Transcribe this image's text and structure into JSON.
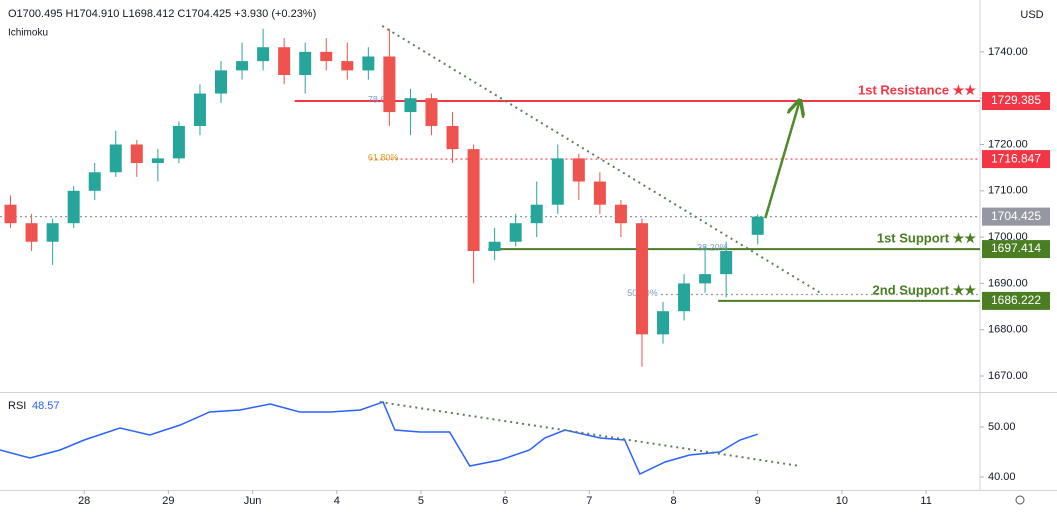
{
  "chart_data": [
    {
      "type": "candlestick",
      "header": "O1700.495 H1704.910 L1698.412 C1704.425 +3.930 (+0.23%)",
      "indicator": "Ichimoku",
      "currency": "USD",
      "x": [
        0.125,
        0.375,
        0.625,
        0.875,
        1.125,
        1.375,
        1.625,
        1.875,
        2.125,
        2.375,
        2.625,
        2.875,
        3.125,
        3.375,
        3.625,
        3.875,
        4.125,
        4.375,
        4.625,
        4.875,
        5.125,
        5.375,
        5.625,
        5.875,
        6.125,
        6.375,
        6.625,
        6.875,
        7.125,
        7.375,
        7.625,
        7.875,
        8.125,
        8.375,
        8.625,
        9.0
      ],
      "open": [
        1707,
        1703,
        1699,
        1703,
        1710,
        1714,
        1720,
        1716,
        1717,
        1724,
        1731,
        1736,
        1738,
        1741,
        1735,
        1740,
        1738,
        1736,
        1739,
        1727,
        1730,
        1724,
        1719,
        1697,
        1699,
        1703,
        1707,
        1717,
        1712,
        1707,
        1703,
        1679,
        1684,
        1690,
        1692,
        1700.495
      ],
      "high": [
        1709,
        1705,
        1704,
        1711,
        1716,
        1723,
        1721,
        1719,
        1725,
        1733,
        1738,
        1742,
        1745,
        1743,
        1742,
        1743,
        1742,
        1741,
        1745,
        1732,
        1731,
        1727,
        1720,
        1702,
        1705,
        1712,
        1720,
        1718,
        1714,
        1708,
        1704,
        1686,
        1692,
        1698,
        1699,
        1704.91
      ],
      "low": [
        1702,
        1697,
        1694,
        1702,
        1708,
        1713,
        1713,
        1712,
        1716,
        1722,
        1729,
        1734,
        1736,
        1733,
        1731,
        1736,
        1734,
        1734,
        1724,
        1722,
        1722,
        1716,
        1690,
        1695,
        1698,
        1700,
        1705,
        1708,
        1705,
        1700,
        1672,
        1677,
        1682,
        1688,
        1687,
        1698.412
      ],
      "close": [
        1703,
        1699,
        1703,
        1710,
        1714,
        1720,
        1716,
        1717,
        1724,
        1731,
        1736,
        1738,
        1741,
        1735,
        1740,
        1738,
        1736,
        1739,
        1727,
        1730,
        1724,
        1719,
        1697,
        1699,
        1703,
        1707,
        1717,
        1712,
        1707,
        1703,
        1679,
        1684,
        1690,
        1692,
        1697,
        1704.425
      ],
      "up_color": "#26a69a",
      "down_color": "#ef5350",
      "xlim": [
        0,
        11.64
      ],
      "xticks": [
        {
          "value": 1,
          "label": "28"
        },
        {
          "value": 2,
          "label": "29"
        },
        {
          "value": 3,
          "label": "Jun"
        },
        4,
        5,
        6,
        7,
        {
          "value": 8,
          "label": "8"
        },
        {
          "value": 9,
          "label": "9"
        },
        {
          "value": 10,
          "label": "10"
        },
        {
          "value": 11,
          "label": "11"
        }
      ],
      "ylim": [
        1666.55,
        1751.2
      ],
      "yticks": [
        {
          "value": 1670,
          "label": "1670.00"
        },
        {
          "value": 1680,
          "label": "1680.00"
        },
        {
          "value": 1690,
          "label": "1690.00"
        },
        {
          "value": 1700,
          "label": "1700.00"
        },
        {
          "value": 1710,
          "label": "1710.00"
        },
        {
          "value": 1720,
          "label": "1720.00"
        },
        {
          "value": 1730,
          "label": "1730.00"
        },
        {
          "value": 1740,
          "label": "1740.00"
        }
      ],
      "levels": [
        {
          "value": 1729.385,
          "color": "#f23645",
          "dashed": false,
          "from": 3.5,
          "axis_label": true
        },
        {
          "value": 1716.847,
          "color": "#f23645",
          "dashed": true,
          "from": 4.4,
          "axis_label": true
        },
        {
          "value": 1704.425,
          "color": "#9598a1",
          "dashed": true,
          "from": 0,
          "axis_label": true
        },
        {
          "value": 1697.414,
          "color": "#4b7d22",
          "dashed": false,
          "from": 5.8,
          "axis_label": true
        },
        {
          "value": 1686.222,
          "color": "#4b7d22",
          "dashed": false,
          "from": 8.53,
          "axis_label": true
        },
        {
          "value": 1687.6,
          "color": "#9598a1",
          "dashed": true,
          "from": 7.85,
          "axis_label": false
        }
      ],
      "fib_labels": [
        {
          "label": "78.6%",
          "value": 1729.385,
          "at": 4.37,
          "color": "#7b9cc9"
        },
        {
          "label": "61.80%",
          "value": 1716.847,
          "at": 4.37,
          "color": "#d4a017"
        },
        {
          "label": "38.20%",
          "value": 1697.414,
          "at": 8.28,
          "color": "#7b9cc9"
        },
        {
          "label": "50.00%",
          "value": 1687.6,
          "at": 7.45,
          "color": "#7b9cc9"
        }
      ],
      "annotations": [
        {
          "text": "1st Resistance ★★",
          "level": 0
        },
        {
          "text": "1st Support ★★",
          "level": 3
        },
        {
          "text": "2nd Support ★★",
          "level": 4
        }
      ],
      "trendline": {
        "x": [
          4.54,
          9.74
        ],
        "y": [
          1745.6,
          1688
        ],
        "color": "#5b7f5b"
      },
      "arrow": {
        "x": [
          9.09,
          9.5
        ],
        "y": [
          1704.1,
          1729.5
        ],
        "color": "#4c8a2a"
      }
    },
    {
      "type": "line",
      "label": "RSI",
      "last_value": 48.57,
      "color": "#2962ff",
      "x": [
        0,
        0.356,
        0.713,
        1,
        1.425,
        1.78,
        2.14,
        2.49,
        2.85,
        3.21,
        3.56,
        3.92,
        4.28,
        4.55,
        4.69,
        4.99,
        5.34,
        5.58,
        5.94,
        6.29,
        6.47,
        6.71,
        7.13,
        7.42,
        7.6,
        7.9,
        8.19,
        8.55,
        8.79,
        9.0
      ],
      "values": [
        45.4,
        43.8,
        45.4,
        47.4,
        49.8,
        48.4,
        50.4,
        53,
        53.4,
        54.6,
        53,
        53,
        53.4,
        55,
        49.4,
        49,
        49,
        42.2,
        43.4,
        45.4,
        47.8,
        49.4,
        47.8,
        47.4,
        40.6,
        43,
        44.4,
        45,
        47.4,
        48.57
      ],
      "xlim": [
        0,
        11.64
      ],
      "ylim": [
        37.4,
        56.8
      ],
      "yticks": [
        {
          "value": 40,
          "label": "40.00"
        },
        {
          "value": 50,
          "label": "50.00"
        }
      ],
      "trendline": {
        "x": [
          4.51,
          9.5
        ],
        "y": [
          55,
          42.2
        ],
        "color": "#5b7f5b"
      }
    }
  ]
}
